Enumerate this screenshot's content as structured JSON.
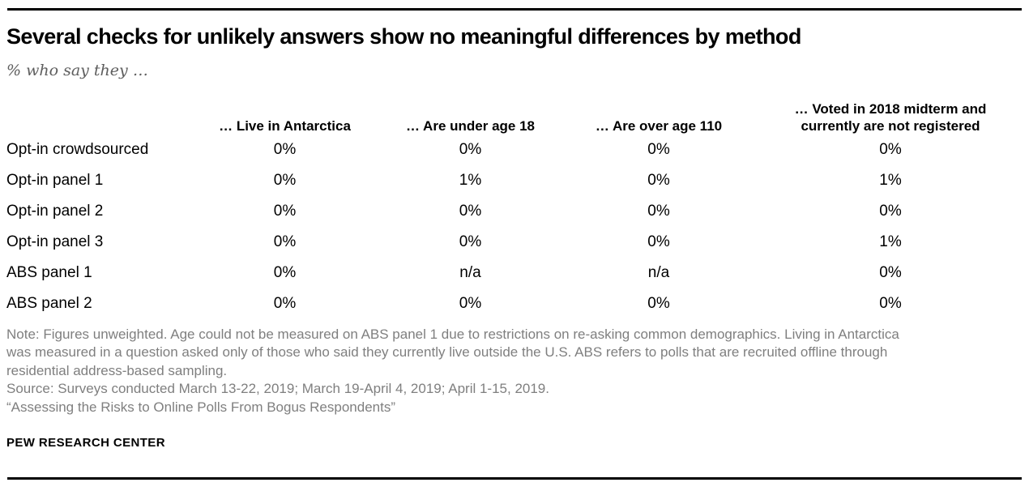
{
  "header": {
    "title": "Several checks for unlikely answers show no meaningful differences by method",
    "subtitle": "% who say they …"
  },
  "table": {
    "columns": [
      "… Live in Antarctica",
      "… Are under age 18",
      "… Are over age 110",
      "… Voted in 2018 midterm and currently are not registered"
    ],
    "rows": [
      {
        "label": "Opt-in crowdsourced",
        "values": [
          "0%",
          "0%",
          "0%",
          "0%"
        ]
      },
      {
        "label": "Opt-in panel 1",
        "values": [
          "0%",
          "1%",
          "0%",
          "1%"
        ]
      },
      {
        "label": "Opt-in panel 2",
        "values": [
          "0%",
          "0%",
          "0%",
          "0%"
        ]
      },
      {
        "label": "Opt-in panel 3",
        "values": [
          "0%",
          "0%",
          "0%",
          "1%"
        ]
      },
      {
        "label": "ABS panel 1",
        "values": [
          "0%",
          "n/a",
          "n/a",
          "0%"
        ]
      },
      {
        "label": "ABS panel 2",
        "values": [
          "0%",
          "0%",
          "0%",
          "0%"
        ]
      }
    ]
  },
  "footer": {
    "note": "Note: Figures unweighted. Age could not be measured on ABS panel 1 due to restrictions on re-asking common demographics. Living in Antarctica was measured in a question asked only of those who said they currently live outside the U.S. ABS refers to polls that are recruited offline through residential address-based sampling.",
    "source": "Source: Surveys conducted March 13-22, 2019; March 19-April 4, 2019; April 1-15, 2019.",
    "report_title": "“Assessing the Risks to Online Polls From Bogus Respondents”",
    "brand": "PEW RESEARCH CENTER"
  },
  "colors": {
    "text": "#000000",
    "muted": "#7f7f7f",
    "rule": "#000000"
  },
  "chart_data": {
    "type": "table",
    "title": "Several checks for unlikely answers show no meaningful differences by method",
    "subtitle": "% who say they …",
    "categories": [
      "Opt-in crowdsourced",
      "Opt-in panel 1",
      "Opt-in panel 2",
      "Opt-in panel 3",
      "ABS panel 1",
      "ABS panel 2"
    ],
    "series": [
      {
        "name": "… Live in Antarctica",
        "values": [
          "0%",
          "0%",
          "0%",
          "0%",
          "0%",
          "0%"
        ]
      },
      {
        "name": "… Are under age 18",
        "values": [
          "0%",
          "1%",
          "0%",
          "0%",
          "n/a",
          "0%"
        ]
      },
      {
        "name": "… Are over age 110",
        "values": [
          "0%",
          "0%",
          "0%",
          "0%",
          "n/a",
          "0%"
        ]
      },
      {
        "name": "… Voted in 2018 midterm and currently are not registered",
        "values": [
          "0%",
          "1%",
          "0%",
          "1%",
          "0%",
          "0%"
        ]
      }
    ]
  }
}
